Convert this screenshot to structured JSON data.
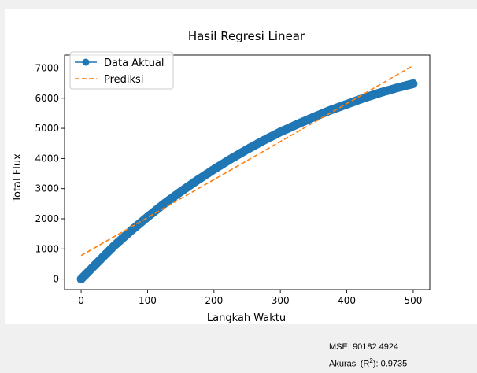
{
  "metrics": {
    "mse_label": "MSE:",
    "mse_value": "90182.4924",
    "r2_label_prefix": "Akurasi (R",
    "r2_label_sup": "2",
    "r2_label_suffix": "):",
    "r2_value": "0.9735"
  },
  "chart_data": {
    "type": "line",
    "title": "Hasil Regresi Linear",
    "xlabel": "Langkah Waktu",
    "ylabel": "Total Flux",
    "xlim": [
      -25,
      525
    ],
    "ylim": [
      -350,
      7430
    ],
    "xticks": [
      0,
      100,
      200,
      300,
      400,
      500
    ],
    "yticks": [
      0,
      1000,
      2000,
      3000,
      4000,
      5000,
      6000,
      7000
    ],
    "grid": false,
    "legend_position": "top-left",
    "series": [
      {
        "name": "Data Aktual",
        "style": "line-with-markers",
        "color": "#1f77b4",
        "x": [
          0,
          25,
          50,
          75,
          100,
          125,
          150,
          175,
          200,
          225,
          250,
          275,
          300,
          325,
          350,
          375,
          400,
          425,
          450,
          475,
          500
        ],
        "values": [
          0,
          560,
          1110,
          1600,
          2060,
          2500,
          2900,
          3280,
          3640,
          3980,
          4300,
          4600,
          4880,
          5130,
          5370,
          5600,
          5800,
          6000,
          6180,
          6340,
          6480
        ]
      },
      {
        "name": "Prediksi",
        "style": "dashed",
        "color": "#ff7f0e",
        "x": [
          0,
          500
        ],
        "values": [
          780,
          7080
        ]
      }
    ]
  }
}
